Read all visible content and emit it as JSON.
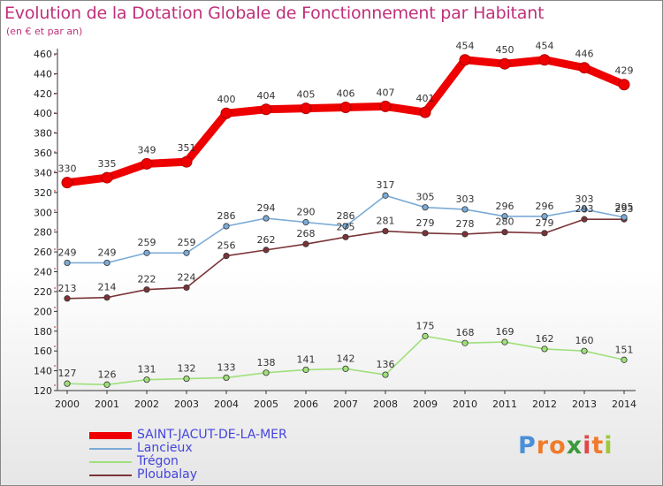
{
  "chart_data": {
    "type": "line",
    "title": "Evolution de la Dotation Globale de Fonctionnement par Habitant",
    "subtitle": "(en € et par an)",
    "categories": [
      "2000",
      "2001",
      "2002",
      "2003",
      "2004",
      "2005",
      "2006",
      "2007",
      "2008",
      "2009",
      "2010",
      "2011",
      "2012",
      "2013",
      "2014"
    ],
    "ylim": [
      120,
      460
    ],
    "yticks": [
      120,
      140,
      160,
      180,
      200,
      220,
      240,
      260,
      280,
      300,
      320,
      340,
      360,
      380,
      400,
      420,
      440,
      460
    ],
    "grid": false,
    "legend_position": "bottom-left",
    "series": [
      {
        "name": "SAINT-JACUT-DE-LA-MER",
        "color": "#ee0000",
        "values": [
          330,
          335,
          349,
          351,
          400,
          404,
          405,
          406,
          407,
          401,
          454,
          450,
          454,
          446,
          429
        ]
      },
      {
        "name": "Lancieux",
        "color": "#7aabd6",
        "values": [
          249,
          249,
          259,
          259,
          286,
          294,
          290,
          286,
          317,
          305,
          303,
          296,
          296,
          303,
          295
        ]
      },
      {
        "name": "Trégon",
        "color": "#9fe07a",
        "values": [
          127,
          126,
          131,
          132,
          133,
          138,
          141,
          142,
          136,
          175,
          168,
          169,
          162,
          160,
          151
        ]
      },
      {
        "name": "Ploubalay",
        "color": "#7a3438",
        "values": [
          213,
          214,
          222,
          224,
          256,
          262,
          268,
          275,
          281,
          279,
          278,
          280,
          279,
          293,
          293
        ]
      }
    ]
  },
  "logo": {
    "text": "Proxiti",
    "letters": [
      "P",
      "r",
      "o",
      "x",
      "i",
      "t",
      "i"
    ],
    "colors": [
      "#4a8fd8",
      "#f07b2a",
      "#f07b2a",
      "#3a9a3a",
      "#e04848",
      "#f07b2a",
      "#9ec93a"
    ]
  }
}
